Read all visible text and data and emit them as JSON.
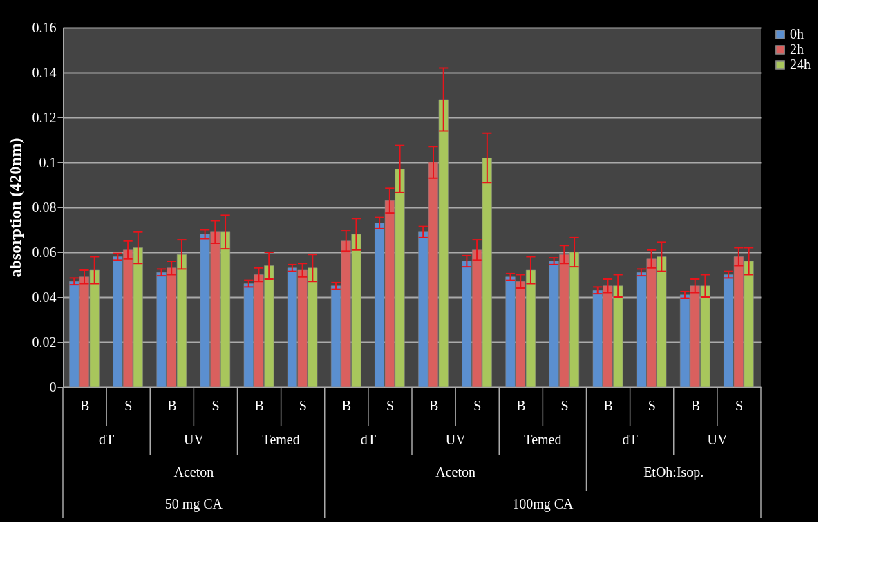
{
  "chart_data": {
    "type": "bar",
    "ylabel": "absorption (420nm)",
    "categories": [
      "B",
      "S",
      "B",
      "S",
      "B",
      "S",
      "B",
      "S",
      "B",
      "S",
      "B",
      "S",
      "B",
      "S",
      "B",
      "S"
    ],
    "series": [
      {
        "name": "0h",
        "color": "#5b8fd0",
        "values": [
          0.047,
          0.058,
          0.051,
          0.068,
          0.046,
          0.053,
          0.045,
          0.073,
          0.069,
          0.056,
          0.049,
          0.056,
          0.043,
          0.051,
          0.041,
          0.05
        ],
        "errors": [
          0.0015,
          0.0015,
          0.0015,
          0.002,
          0.0015,
          0.0015,
          0.0015,
          0.0025,
          0.0025,
          0.0025,
          0.0015,
          0.0015,
          0.0015,
          0.0015,
          0.0015,
          0.0015
        ]
      },
      {
        "name": "2h",
        "color": "#d9605e",
        "values": [
          0.049,
          0.061,
          0.053,
          0.069,
          0.05,
          0.052,
          0.065,
          0.083,
          0.1,
          0.061,
          0.047,
          0.059,
          0.045,
          0.057,
          0.045,
          0.058
        ],
        "errors": [
          0.003,
          0.004,
          0.003,
          0.005,
          0.003,
          0.003,
          0.0045,
          0.0055,
          0.007,
          0.0045,
          0.003,
          0.004,
          0.003,
          0.004,
          0.003,
          0.004
        ]
      },
      {
        "name": "24h",
        "color": "#a8c65c",
        "values": [
          0.052,
          0.062,
          0.059,
          0.069,
          0.054,
          0.053,
          0.068,
          0.097,
          0.128,
          0.102,
          0.052,
          0.06,
          0.045,
          0.058,
          0.045,
          0.056
        ],
        "errors": [
          0.006,
          0.007,
          0.0065,
          0.0075,
          0.006,
          0.006,
          0.007,
          0.0105,
          0.014,
          0.011,
          0.006,
          0.0065,
          0.005,
          0.0065,
          0.005,
          0.006
        ]
      }
    ],
    "annotations": [
      "dT",
      "UV",
      "Temed",
      "dT",
      "UV",
      "Temed",
      "dT",
      "UV",
      "Aceton",
      "Aceton",
      "EtOh:Isop.",
      "50 mg CA",
      "100mg CA"
    ],
    "ylim": [
      0,
      0.16
    ],
    "yticks": [
      0,
      0.02,
      0.04,
      0.06,
      0.08,
      0.1,
      0.12,
      0.14,
      0.16
    ],
    "grid": "y",
    "legend": "right"
  }
}
